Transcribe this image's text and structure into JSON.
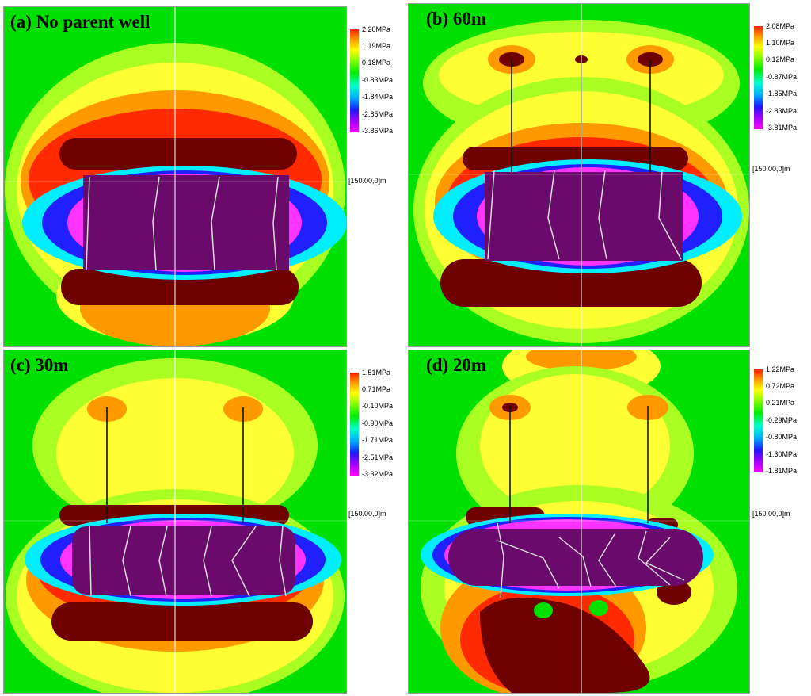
{
  "panels": [
    {
      "title": "(a) No parent well",
      "legend": [
        "2.20MPa",
        "1.19MPa",
        "0.18MPa",
        "-0.83MPa",
        "-1.84MPa",
        "-2.85MPa",
        "-3.86MPa"
      ],
      "coord": "[150.00,0]m"
    },
    {
      "title": "(b) 60m",
      "legend": [
        "2.08MPa",
        "1.10MPa",
        "0.12MPa",
        "-0.87MPa",
        "-1.85MPa",
        "-2.83MPa",
        "-3.81MPa"
      ],
      "coord": "[150.00,0]m"
    },
    {
      "title": "(c) 30m",
      "legend": [
        "1.51MPa",
        "0.71MPa",
        "-0.10MPa",
        "-0.90MPa",
        "-1.71MPa",
        "-2.51MPa",
        "-3.32MPa"
      ],
      "coord": "[150.00,0]m"
    },
    {
      "title": "(d) 20m",
      "legend": [
        "1.22MPa",
        "0.72MPa",
        "0.21MPa",
        "-0.29MPa",
        "-0.80MPa",
        "-1.30MPa",
        "-1.81MPa"
      ],
      "coord": "[150.00,0]m"
    }
  ],
  "colors": {
    "background_field": "#00e000",
    "yellow": "#ffff33",
    "orange": "#ff9900",
    "red": "#ff2a00",
    "dark_red": "#6e0000",
    "purple": "#6a0a6a",
    "magenta": "#ff33ff",
    "blue": "#2020ff",
    "cyan": "#00eeff"
  }
}
